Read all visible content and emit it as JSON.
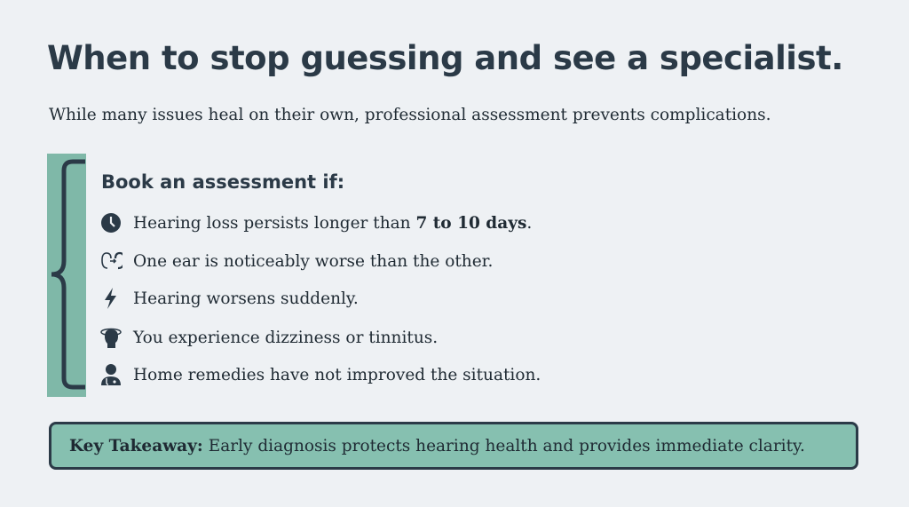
{
  "title": "When to stop guessing and see a specialist.",
  "subtitle": "While many issues heal on their own, professional assessment prevents complications.",
  "checklist": {
    "heading": "Book an assessment if:",
    "items": [
      {
        "icon": "clock-icon",
        "text": "Hearing loss persists longer than ",
        "bold": "7 to 10 days",
        "after": "."
      },
      {
        "icon": "ear-compare-icon",
        "text": "One ear is noticeably worse than the other."
      },
      {
        "icon": "lightning-icon",
        "text": "Hearing worsens suddenly."
      },
      {
        "icon": "dizzy-head-icon",
        "text": "You experience dizziness or tinnitus."
      },
      {
        "icon": "doctor-icon",
        "text": "Home remedies have not improved the situation."
      }
    ]
  },
  "takeaway": {
    "label": "Key Takeaway:",
    "text": "Early diagnosis protects hearing health and provides immediate clarity."
  },
  "colors": {
    "accent": "#7fb8a8",
    "dark": "#2b3a47",
    "background": "#eef1f4"
  }
}
